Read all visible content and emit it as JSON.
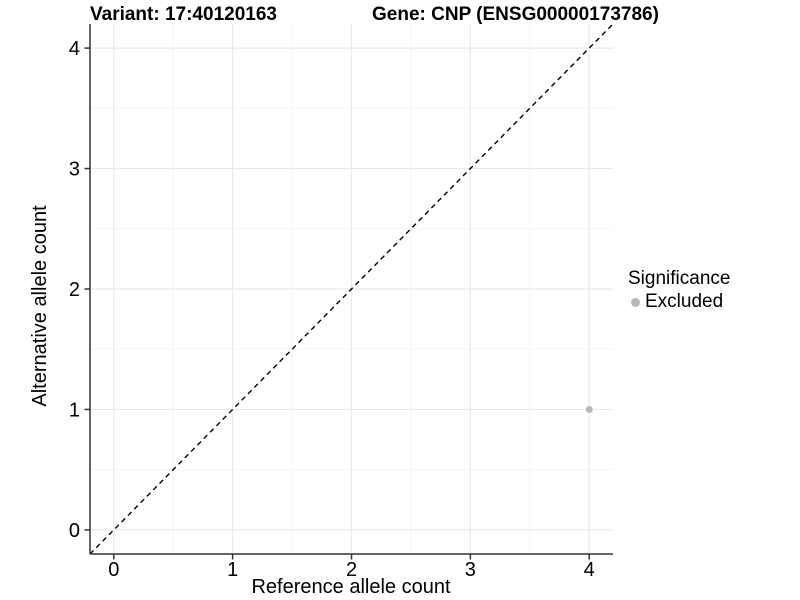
{
  "chart_data": {
    "type": "scatter",
    "titles": {
      "left": "Variant: 17:40120163",
      "right": "Gene: CNP (ENSG00000173786)"
    },
    "xlabel": "Reference allele count",
    "ylabel": "Alternative allele count",
    "xlim": [
      -0.2,
      4.2
    ],
    "ylim": [
      -0.2,
      4.2
    ],
    "xticks": [
      0,
      1,
      2,
      3,
      4
    ],
    "yticks": [
      0,
      1,
      2,
      3,
      4
    ],
    "grid": true,
    "minor_grid": true,
    "legend_position": "right",
    "reference_line": {
      "type": "identity",
      "from": [
        -0.2,
        -0.2
      ],
      "to": [
        4.2,
        4.2
      ],
      "style": "dashed",
      "color": "#000000"
    },
    "series": [
      {
        "name": "Excluded",
        "color": "#b8b8b8",
        "points": [
          {
            "x": 4,
            "y": 1
          }
        ]
      }
    ],
    "legend": {
      "title": "Significance",
      "entries": [
        {
          "label": "Excluded",
          "color": "#b8b8b8"
        }
      ]
    },
    "colors": {
      "grid_major": "#e9e9e9",
      "grid_minor": "#f4f4f4",
      "axis_line": "#333333",
      "tick_mark": "#333333",
      "tick_text": "#000000"
    }
  }
}
